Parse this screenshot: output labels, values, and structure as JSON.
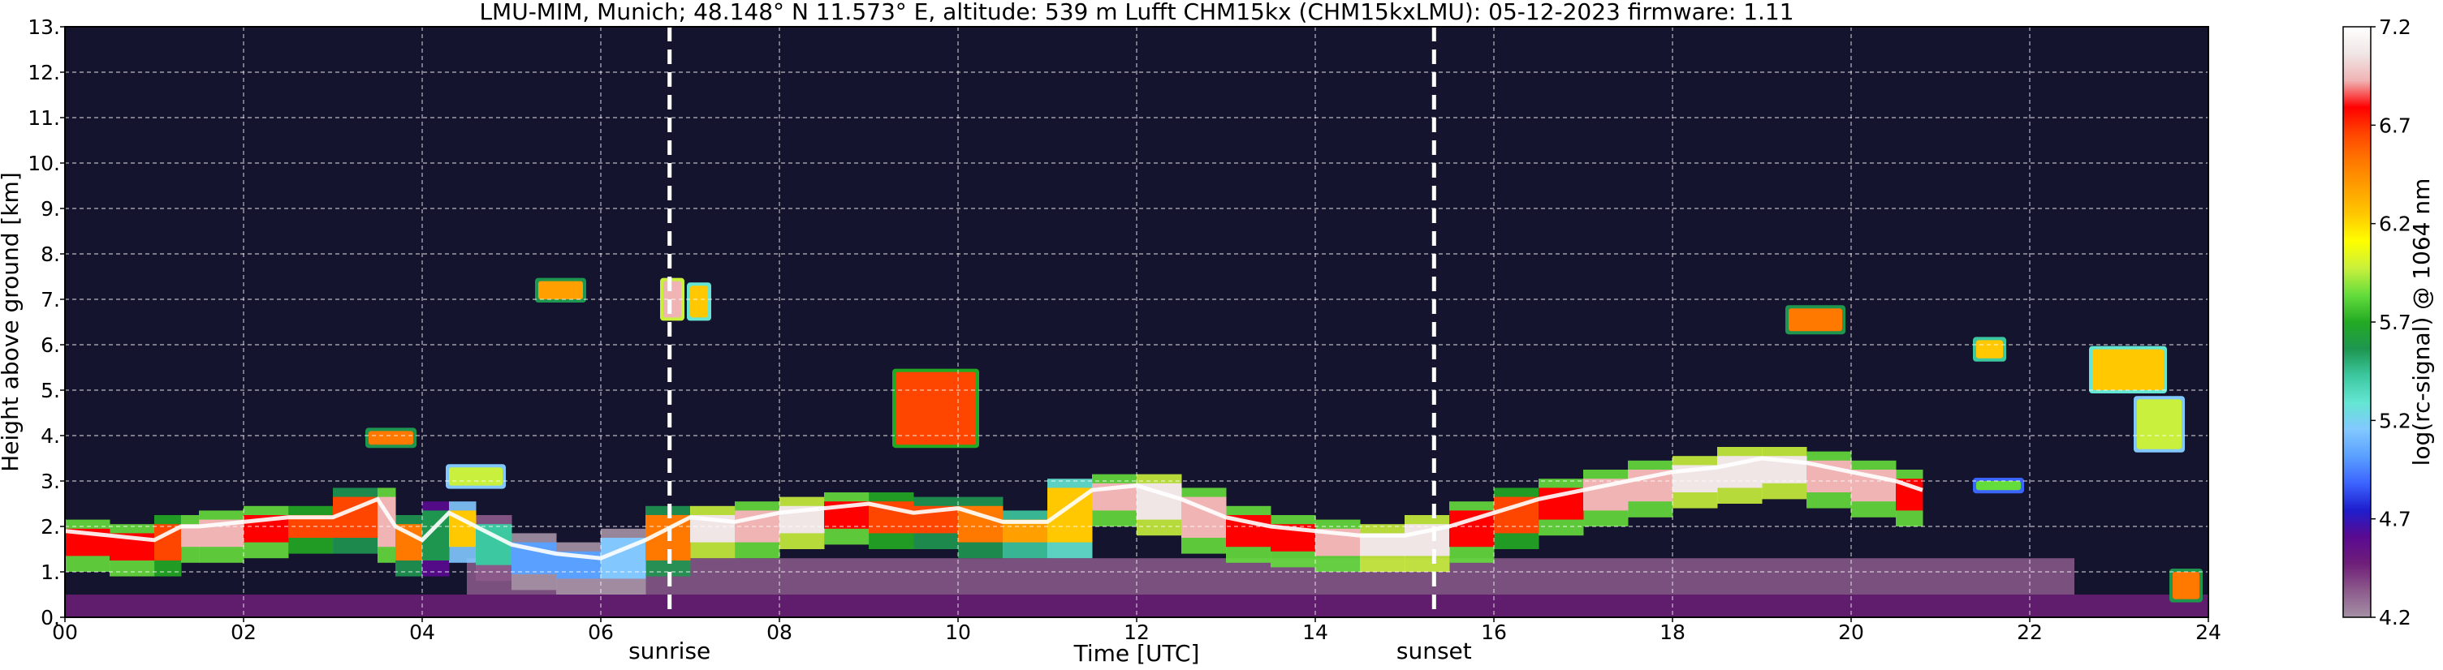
{
  "chart_data": {
    "type": "heatmap",
    "title": "LMU-MIM, Munich; 48.148° N 11.573° E, altitude: 539 m    Lufft CHM15kx (CHM15kxLMU): 05-12-2023    firmware: 1.11",
    "xlabel": "Time [UTC]",
    "ylabel": "Height above ground [km]",
    "xlim": [
      0,
      24
    ],
    "ylim": [
      0,
      13
    ],
    "x_ticks": [
      "00",
      "02",
      "04",
      "06",
      "08",
      "10",
      "12",
      "14",
      "16",
      "18",
      "20",
      "22",
      "24"
    ],
    "x_tick_values": [
      0,
      2,
      4,
      6,
      8,
      10,
      12,
      14,
      16,
      18,
      20,
      22,
      24
    ],
    "y_ticks": [
      "0.",
      "1.",
      "2.",
      "3.",
      "4.",
      "5.",
      "6.",
      "7.",
      "8.",
      "9.",
      "10.",
      "11.",
      "12.",
      "13."
    ],
    "y_tick_values": [
      0,
      1,
      2,
      3,
      4,
      5,
      6,
      7,
      8,
      9,
      10,
      11,
      12,
      13
    ],
    "grid": true,
    "background": "#15142e",
    "events": [
      {
        "label": "sunrise",
        "x": 6.77
      },
      {
        "label": "sunset",
        "x": 15.33
      }
    ],
    "colorbar": {
      "label": "log(rc-signal) @ 1064 nm",
      "range": [
        4.2,
        7.2
      ],
      "ticks": [
        "4.2",
        "4.7",
        "5.2",
        "5.7",
        "6.2",
        "6.7",
        "7.2"
      ],
      "tick_values": [
        4.2,
        4.7,
        5.2,
        5.7,
        6.2,
        6.7,
        7.2
      ],
      "colors": [
        "#a591a5",
        "#8c5a8c",
        "#6e1e78",
        "#5a0a91",
        "#1e1ecd",
        "#3c64ff",
        "#5aa0ff",
        "#82c8ff",
        "#64e6d2",
        "#3cc8a0",
        "#1e9650",
        "#23aa23",
        "#64dc3c",
        "#c8f03c",
        "#ffff00",
        "#ffc800",
        "#ffa000",
        "#ff7800",
        "#ff4600",
        "#ff0000",
        "#f0b4b4",
        "#f0e6e6",
        "#ffffff"
      ]
    },
    "layers": [
      {
        "name": "near-surface",
        "x": [
          0,
          24
        ],
        "y": [
          0,
          0.5
        ],
        "value": 4.5
      },
      {
        "name": "aerosol-layer",
        "x": [
          4.5,
          22.5
        ],
        "y": [
          0.5,
          1.3
        ],
        "value": 4.3
      }
    ],
    "series": [
      {
        "name": "boundary-layer-top",
        "x": [
          0,
          0.5,
          1,
          1.3,
          1.5,
          2,
          2.5,
          3,
          3.5,
          3.7,
          4,
          4.3,
          4.6,
          5,
          5.5,
          6,
          6.5,
          7,
          7.5,
          8,
          8.5,
          9,
          9.5,
          10,
          10.5,
          11,
          11.5,
          12,
          12.5,
          13,
          13.5,
          14,
          14.5,
          15,
          15.5,
          16,
          16.5,
          17,
          17.5,
          18,
          18.5,
          19,
          19.5,
          20,
          20.5,
          20.8
        ],
        "y": [
          1.9,
          1.8,
          1.7,
          2.0,
          2.0,
          2.1,
          2.2,
          2.2,
          2.6,
          2.0,
          1.7,
          2.3,
          2.0,
          1.6,
          1.4,
          1.3,
          1.7,
          2.2,
          2.1,
          2.3,
          2.4,
          2.5,
          2.3,
          2.4,
          2.1,
          2.1,
          2.8,
          2.9,
          2.6,
          2.2,
          2.0,
          1.9,
          1.8,
          1.8,
          2.0,
          2.3,
          2.6,
          2.8,
          3.0,
          3.2,
          3.3,
          3.5,
          3.4,
          3.2,
          3.0,
          2.8
        ],
        "values": [
          6.8,
          6.8,
          6.7,
          6.9,
          6.9,
          6.8,
          6.7,
          6.6,
          6.9,
          6.5,
          5.6,
          6.2,
          5.4,
          5.0,
          5.0,
          5.2,
          6.5,
          7.0,
          6.9,
          7.0,
          6.8,
          6.7,
          6.6,
          6.5,
          6.4,
          6.3,
          6.9,
          7.0,
          6.9,
          6.8,
          6.8,
          6.9,
          7.0,
          7.0,
          6.8,
          6.7,
          6.8,
          6.9,
          6.9,
          7.0,
          7.0,
          7.0,
          6.9,
          6.9,
          6.8,
          6.7
        ]
      }
    ],
    "patches": [
      {
        "x": [
          3.4,
          3.9
        ],
        "y": [
          3.8,
          4.1
        ],
        "value": 6.5
      },
      {
        "x": [
          4.3,
          4.9
        ],
        "y": [
          2.9,
          3.3
        ],
        "value": 6.0
      },
      {
        "x": [
          5.3,
          5.8
        ],
        "y": [
          7.0,
          7.4
        ],
        "value": 6.4
      },
      {
        "x": [
          6.7,
          6.9
        ],
        "y": [
          6.6,
          7.4
        ],
        "value": 6.9
      },
      {
        "x": [
          7.0,
          7.2
        ],
        "y": [
          6.6,
          7.3
        ],
        "value": 6.2
      },
      {
        "x": [
          9.3,
          10.2
        ],
        "y": [
          3.8,
          5.4
        ],
        "value": 6.6
      },
      {
        "x": [
          19.3,
          19.9
        ],
        "y": [
          6.3,
          6.8
        ],
        "value": 6.5
      },
      {
        "x": [
          21.4,
          21.7
        ],
        "y": [
          5.7,
          6.1
        ],
        "value": 6.3
      },
      {
        "x": [
          21.4,
          21.9
        ],
        "y": [
          2.8,
          3.0
        ],
        "value": 5.8
      },
      {
        "x": [
          22.7,
          23.5
        ],
        "y": [
          5.0,
          5.9
        ],
        "value": 6.2
      },
      {
        "x": [
          23.2,
          23.7
        ],
        "y": [
          3.7,
          4.8
        ],
        "value": 6.0
      },
      {
        "x": [
          23.6,
          23.9
        ],
        "y": [
          0.4,
          1.0
        ],
        "value": 6.5
      }
    ]
  }
}
